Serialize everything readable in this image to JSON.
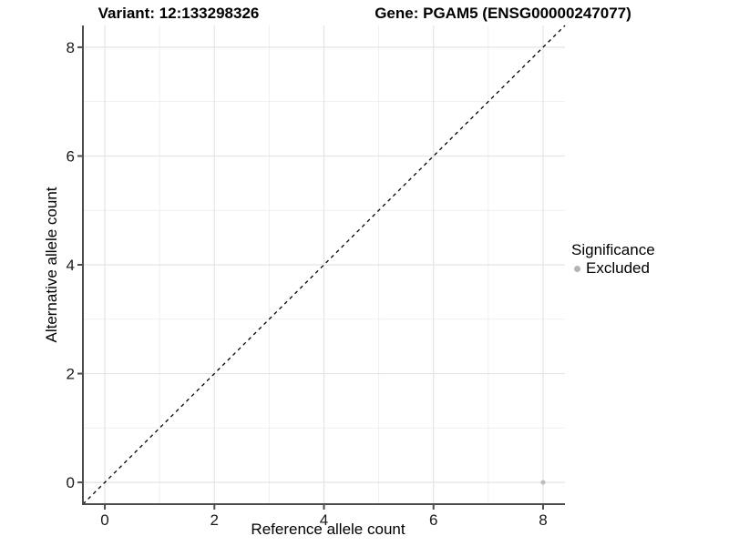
{
  "chart_data": {
    "type": "scatter",
    "title_left": "Variant: 12:133298326",
    "title_right": "Gene: PGAM5 (ENSG00000247077)",
    "xlabel": "Reference allele count",
    "ylabel": "Alternative allele count",
    "xlim": [
      -0.4,
      8.4
    ],
    "ylim": [
      -0.4,
      8.4
    ],
    "x_ticks": [
      0,
      2,
      4,
      6,
      8
    ],
    "y_ticks": [
      0,
      2,
      4,
      6,
      8
    ],
    "x_minor": [
      1,
      3,
      5,
      7
    ],
    "y_minor": [
      1,
      3,
      5,
      7
    ],
    "grid": true,
    "points": [
      {
        "x": 8,
        "y": 0,
        "series": "Excluded"
      }
    ],
    "reference_line": {
      "slope": 1,
      "intercept": 0,
      "style": "dashed"
    },
    "legend": {
      "title": "Significance",
      "position": "right",
      "entries": [
        {
          "label": "Excluded",
          "color": "#b4b4b4"
        }
      ]
    },
    "colors": {
      "background": "#ffffff",
      "grid_major": "#e4e4e4",
      "grid_minor": "#efefef",
      "axis_line": "#4d4d4d",
      "tick_text": "#1a1a1a",
      "reference_line": "#000000",
      "point_excluded": "#bdbdbd"
    }
  }
}
